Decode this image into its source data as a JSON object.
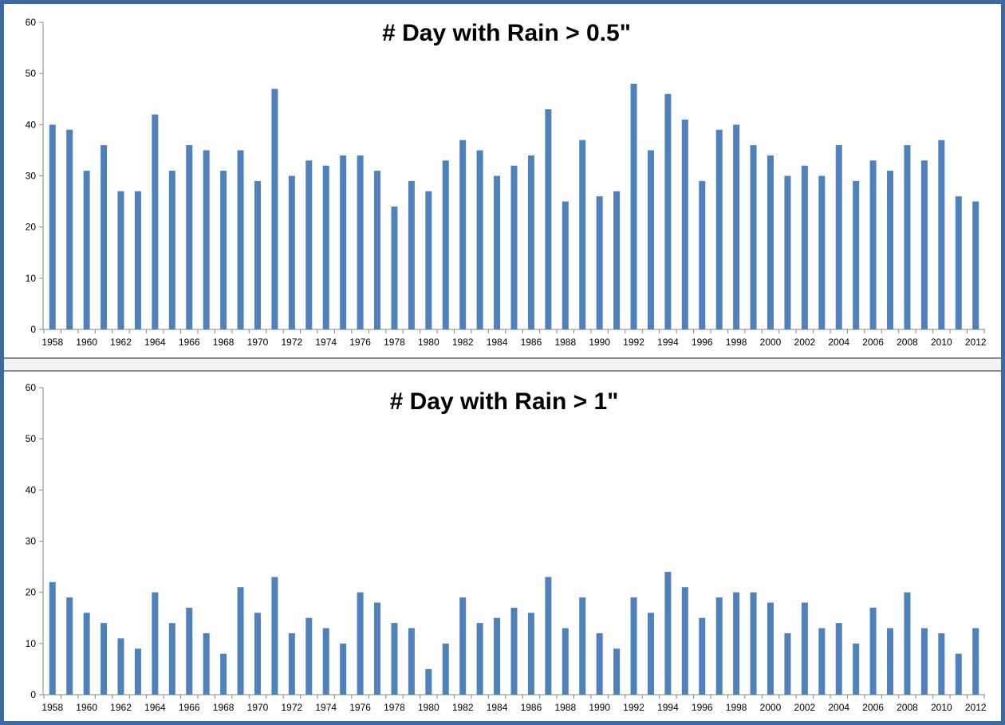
{
  "chart_data": [
    {
      "type": "bar",
      "title": "# Day with Rain > 0.5\"",
      "xlabel": "",
      "ylabel": "",
      "ylim": [
        0,
        60
      ],
      "yticks": [
        0,
        10,
        20,
        30,
        40,
        50,
        60
      ],
      "grid": false,
      "bar_color": "#4f81bd",
      "categories": [
        1958,
        1959,
        1960,
        1961,
        1962,
        1963,
        1964,
        1965,
        1966,
        1967,
        1968,
        1969,
        1970,
        1971,
        1972,
        1973,
        1974,
        1975,
        1976,
        1977,
        1978,
        1979,
        1980,
        1981,
        1982,
        1983,
        1984,
        1985,
        1986,
        1987,
        1988,
        1989,
        1990,
        1991,
        1992,
        1993,
        1994,
        1995,
        1996,
        1997,
        1998,
        1999,
        2000,
        2001,
        2002,
        2003,
        2004,
        2005,
        2006,
        2007,
        2008,
        2009,
        2010,
        2011,
        2012
      ],
      "tick_labels": [
        "1958",
        "1960",
        "1962",
        "1964",
        "1966",
        "1968",
        "1970",
        "1972",
        "1974",
        "1976",
        "1978",
        "1980",
        "1982",
        "1984",
        "1986",
        "1988",
        "1990",
        "1992",
        "1994",
        "1996",
        "1998",
        "2000",
        "2002",
        "2004",
        "2006",
        "2008",
        "2010",
        "2012"
      ],
      "values": [
        40,
        39,
        31,
        36,
        27,
        27,
        42,
        31,
        36,
        35,
        31,
        35,
        29,
        47,
        30,
        33,
        32,
        34,
        34,
        31,
        24,
        29,
        27,
        33,
        37,
        35,
        30,
        32,
        34,
        43,
        25,
        37,
        26,
        27,
        48,
        35,
        46,
        41,
        29,
        39,
        40,
        36,
        34,
        30,
        32,
        30,
        36,
        29,
        33,
        31,
        36,
        33,
        37,
        26,
        25
      ]
    },
    {
      "type": "bar",
      "title": "# Day with Rain > 1\"",
      "xlabel": "",
      "ylabel": "",
      "ylim": [
        0,
        60
      ],
      "yticks": [
        0,
        10,
        20,
        30,
        40,
        50,
        60
      ],
      "grid": false,
      "bar_color": "#4f81bd",
      "categories": [
        1958,
        1959,
        1960,
        1961,
        1962,
        1963,
        1964,
        1965,
        1966,
        1967,
        1968,
        1969,
        1970,
        1971,
        1972,
        1973,
        1974,
        1975,
        1976,
        1977,
        1978,
        1979,
        1980,
        1981,
        1982,
        1983,
        1984,
        1985,
        1986,
        1987,
        1988,
        1989,
        1990,
        1991,
        1992,
        1993,
        1994,
        1995,
        1996,
        1997,
        1998,
        1999,
        2000,
        2001,
        2002,
        2003,
        2004,
        2005,
        2006,
        2007,
        2008,
        2009,
        2010,
        2011,
        2012
      ],
      "tick_labels": [
        "1958",
        "1960",
        "1962",
        "1964",
        "1966",
        "1968",
        "1970",
        "1972",
        "1974",
        "1976",
        "1978",
        "1980",
        "1982",
        "1984",
        "1986",
        "1988",
        "1990",
        "1992",
        "1994",
        "1996",
        "1998",
        "2000",
        "2002",
        "2004",
        "2006",
        "2008",
        "2010",
        "2012"
      ],
      "values": [
        22,
        19,
        16,
        14,
        11,
        9,
        20,
        14,
        17,
        12,
        8,
        21,
        16,
        23,
        12,
        15,
        13,
        10,
        20,
        18,
        14,
        13,
        5,
        10,
        19,
        14,
        15,
        17,
        16,
        23,
        13,
        19,
        12,
        9,
        19,
        16,
        24,
        21,
        15,
        19,
        20,
        20,
        18,
        12,
        18,
        13,
        14,
        10,
        17,
        13,
        20,
        13,
        12,
        8,
        13
      ]
    }
  ],
  "colors": {
    "frame": "#3d6aa3",
    "bar": "#4f81bd",
    "axis": "#868686"
  }
}
